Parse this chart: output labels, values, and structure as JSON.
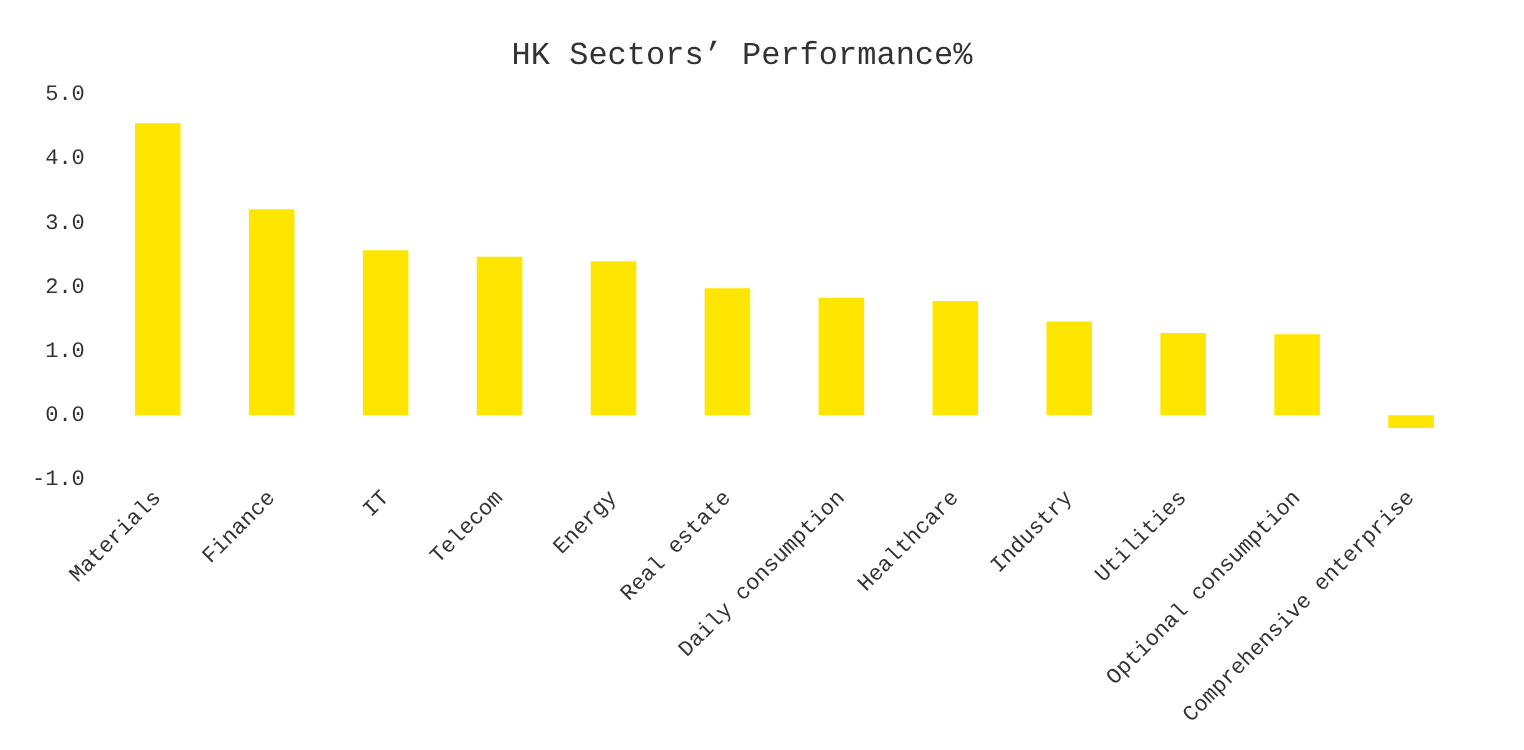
{
  "chart_data": {
    "type": "bar",
    "title": "HK Sectors’ Performance%",
    "categories": [
      "Materials",
      "Finance",
      "IT",
      "Telecom",
      "Energy",
      "Real estate",
      "Daily consumption",
      "Healthcare",
      "Industry",
      "Utilities",
      "Optional consumption",
      "Comprehensive enterprise"
    ],
    "values": [
      4.55,
      3.21,
      2.57,
      2.47,
      2.4,
      1.98,
      1.83,
      1.78,
      1.46,
      1.28,
      1.26,
      -0.2
    ],
    "color": "#ffe600",
    "ylim": [
      -1,
      5
    ],
    "yticks": [
      {
        "value": -1,
        "label": "-1.0"
      },
      {
        "value": 0,
        "label": "0.0"
      },
      {
        "value": 1,
        "label": "1.0"
      },
      {
        "value": 2,
        "label": "2.0"
      },
      {
        "value": 3,
        "label": "3.0"
      },
      {
        "value": 4,
        "label": "4.0"
      },
      {
        "value": 5,
        "label": "5.0"
      }
    ],
    "grid": false,
    "legend": false
  }
}
